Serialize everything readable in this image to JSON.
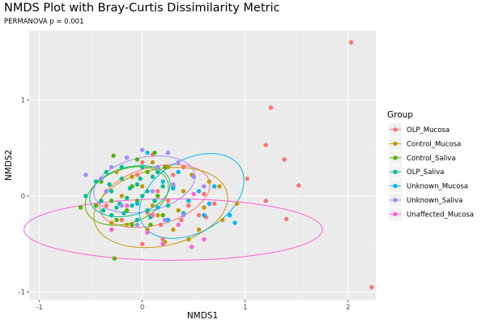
{
  "chart_data": {
    "type": "scatter",
    "title": "NMDS Plot with Bray-Curtis Dissimilarity Metric",
    "subtitle": "PERMANOVA p =  0.001",
    "xlabel": "NMDS1",
    "ylabel": "NMDS2",
    "xlim": [
      -1.1,
      2.27
    ],
    "ylim": [
      -1.08,
      1.72
    ],
    "x_ticks": [
      -1,
      0,
      1,
      2
    ],
    "y_ticks": [
      -1,
      0,
      1
    ],
    "x_tick_labels": [
      "-1",
      "0",
      "1",
      "2"
    ],
    "y_tick_labels": [
      "-1",
      "0",
      "1"
    ],
    "grid": true,
    "legend": {
      "title": "Group",
      "position": "right"
    },
    "series": [
      {
        "name": "OLP_Mucosa",
        "color": "#F8766D",
        "ellipse": {
          "cx": 0.12,
          "cy": 0.0,
          "rx": 0.55,
          "ry": 0.3,
          "angle": -15
        },
        "points": [
          [
            2.03,
            1.6
          ],
          [
            1.25,
            0.92
          ],
          [
            1.2,
            0.53
          ],
          [
            1.38,
            0.38
          ],
          [
            1.52,
            0.11
          ],
          [
            1.02,
            0.18
          ],
          [
            1.2,
            -0.05
          ],
          [
            1.4,
            -0.24
          ],
          [
            2.23,
            -0.95
          ],
          [
            0.1,
            0.43
          ],
          [
            0.0,
            0.35
          ],
          [
            0.3,
            0.22
          ],
          [
            0.6,
            0.02
          ],
          [
            0.18,
            -0.3
          ],
          [
            0.38,
            -0.25
          ],
          [
            0.05,
            -0.17
          ],
          [
            -0.2,
            -0.25
          ],
          [
            -0.35,
            -0.1
          ],
          [
            0.25,
            -0.05
          ],
          [
            0.45,
            -0.1
          ],
          [
            0.7,
            -0.08
          ],
          [
            0.55,
            -0.2
          ],
          [
            -0.1,
            0.1
          ],
          [
            0.15,
            0.05
          ],
          [
            0.0,
            -0.5
          ],
          [
            0.08,
            -0.3
          ],
          [
            0.2,
            -0.45
          ],
          [
            0.62,
            -0.22
          ],
          [
            -0.05,
            0.22
          ],
          [
            0.4,
            0.3
          ]
        ]
      },
      {
        "name": "Control_Mucosa",
        "color": "#C49A00",
        "ellipse": {
          "cx": 0.18,
          "cy": -0.12,
          "rx": 0.66,
          "ry": 0.4,
          "angle": -12
        },
        "points": [
          [
            0.75,
            0.1
          ],
          [
            0.92,
            -0.08
          ],
          [
            0.45,
            -0.45
          ],
          [
            0.22,
            -0.48
          ],
          [
            0.55,
            -0.35
          ],
          [
            -0.1,
            0.2
          ],
          [
            0.3,
            0.1
          ],
          [
            0.15,
            -0.2
          ],
          [
            -0.3,
            -0.28
          ],
          [
            0.35,
            -0.15
          ],
          [
            0.1,
            0.35
          ],
          [
            -0.2,
            0.0
          ],
          [
            0.4,
            0.05
          ],
          [
            0.6,
            -0.12
          ],
          [
            0.05,
            -0.35
          ],
          [
            -0.15,
            -0.3
          ],
          [
            0.25,
            0.3
          ],
          [
            0.48,
            0.22
          ],
          [
            0.78,
            -0.25
          ],
          [
            0.1,
            -0.1
          ],
          [
            -0.4,
            -0.05
          ],
          [
            0.65,
            0.15
          ],
          [
            0.3,
            -0.35
          ],
          [
            0.0,
            0.1
          ],
          [
            -0.25,
            0.25
          ]
        ]
      },
      {
        "name": "Control_Saliva",
        "color": "#53B400",
        "ellipse": {
          "cx": -0.15,
          "cy": 0.0,
          "rx": 0.42,
          "ry": 0.28,
          "angle": -20
        },
        "points": [
          [
            -0.28,
            0.42
          ],
          [
            -0.05,
            0.38
          ],
          [
            0.12,
            0.45
          ],
          [
            -0.2,
            0.3
          ],
          [
            0.05,
            0.25
          ],
          [
            -0.4,
            0.15
          ],
          [
            -0.1,
            0.1
          ],
          [
            0.15,
            0.0
          ],
          [
            -0.3,
            -0.05
          ],
          [
            -0.15,
            -0.15
          ],
          [
            0.2,
            -0.2
          ],
          [
            -0.45,
            -0.1
          ],
          [
            -0.6,
            -0.12
          ],
          [
            0.08,
            -0.3
          ],
          [
            -0.25,
            -0.25
          ],
          [
            0.3,
            0.12
          ],
          [
            -0.05,
            -0.05
          ],
          [
            -0.35,
            0.05
          ],
          [
            0.22,
            0.3
          ],
          [
            -0.1,
            -0.3
          ],
          [
            -0.27,
            -0.65
          ]
        ]
      },
      {
        "name": "OLP_Saliva",
        "color": "#00C094",
        "ellipse": {
          "cx": -0.12,
          "cy": 0.05,
          "rx": 0.4,
          "ry": 0.25,
          "angle": -15
        },
        "points": [
          [
            -0.35,
            0.25
          ],
          [
            -0.2,
            0.18
          ],
          [
            -0.05,
            0.12
          ],
          [
            0.1,
            0.2
          ],
          [
            -0.3,
            0.05
          ],
          [
            -0.15,
            -0.02
          ],
          [
            0.0,
            0.0
          ],
          [
            0.12,
            -0.05
          ],
          [
            -0.4,
            -0.05
          ],
          [
            -0.25,
            -0.12
          ],
          [
            -0.1,
            -0.1
          ],
          [
            0.05,
            -0.15
          ],
          [
            -0.2,
            0.3
          ],
          [
            0.0,
            0.3
          ],
          [
            0.2,
            0.1
          ],
          [
            -0.45,
            0.15
          ],
          [
            -0.3,
            -0.2
          ],
          [
            -0.05,
            -0.25
          ],
          [
            0.15,
            0.25
          ],
          [
            -0.15,
            0.4
          ],
          [
            0.25,
            -0.1
          ],
          [
            -0.55,
            0.0
          ],
          [
            -0.38,
            -0.15
          ],
          [
            0.05,
            0.05
          ],
          [
            -0.12,
            0.08
          ],
          [
            -0.22,
            -0.08
          ],
          [
            0.08,
            -0.22
          ],
          [
            -0.32,
            0.12
          ],
          [
            -0.02,
            0.18
          ],
          [
            -0.18,
            -0.18
          ]
        ]
      },
      {
        "name": "Unknown_Mucosa",
        "color": "#00B6EB",
        "ellipse": {
          "cx": 0.48,
          "cy": 0.0,
          "rx": 0.55,
          "ry": 0.38,
          "angle": -30
        },
        "points": [
          [
            0.85,
            -0.2
          ],
          [
            0.65,
            -0.08
          ],
          [
            0.2,
            0.15
          ],
          [
            0.4,
            -0.18
          ],
          [
            0.05,
            0.45
          ],
          [
            0.55,
            0.05
          ],
          [
            0.9,
            -0.28
          ],
          [
            0.3,
            0.08
          ],
          [
            0.7,
            0.1
          ],
          [
            -0.05,
            -0.08
          ],
          [
            0.45,
            -0.05
          ],
          [
            0.25,
            -0.25
          ],
          [
            0.6,
            -0.2
          ],
          [
            0.15,
            -0.12
          ],
          [
            0.35,
            0.25
          ]
        ]
      },
      {
        "name": "Unknown_Saliva",
        "color": "#A58AFF",
        "ellipse": {
          "cx": 0.02,
          "cy": 0.12,
          "rx": 0.5,
          "ry": 0.28,
          "angle": -12
        },
        "points": [
          [
            -0.55,
            0.22
          ],
          [
            0.25,
            0.45
          ],
          [
            -0.15,
            0.4
          ],
          [
            0.0,
            0.48
          ],
          [
            0.35,
            0.35
          ],
          [
            -0.3,
            0.3
          ],
          [
            0.15,
            0.3
          ],
          [
            0.5,
            0.2
          ],
          [
            -0.4,
            0.18
          ],
          [
            0.3,
            0.12
          ],
          [
            -0.2,
            -0.1
          ],
          [
            0.4,
            -0.2
          ],
          [
            0.1,
            0.05
          ],
          [
            0.6,
            0.1
          ],
          [
            -0.05,
            -0.3
          ],
          [
            -0.35,
            0.05
          ],
          [
            0.22,
            -0.25
          ]
        ]
      },
      {
        "name": "Unaffected_Mucosa",
        "color": "#FB61D7",
        "ellipse": {
          "cx": 0.3,
          "cy": -0.35,
          "rx": 1.45,
          "ry": 0.32,
          "angle": 0
        },
        "points": [
          [
            0.48,
            -0.53
          ],
          [
            0.2,
            -0.5
          ],
          [
            -0.3,
            -0.35
          ],
          [
            0.1,
            -0.2
          ],
          [
            0.35,
            -0.3
          ],
          [
            0.6,
            -0.45
          ],
          [
            0.05,
            -0.38
          ],
          [
            -0.15,
            -0.1
          ],
          [
            0.5,
            0.02
          ]
        ]
      }
    ]
  }
}
